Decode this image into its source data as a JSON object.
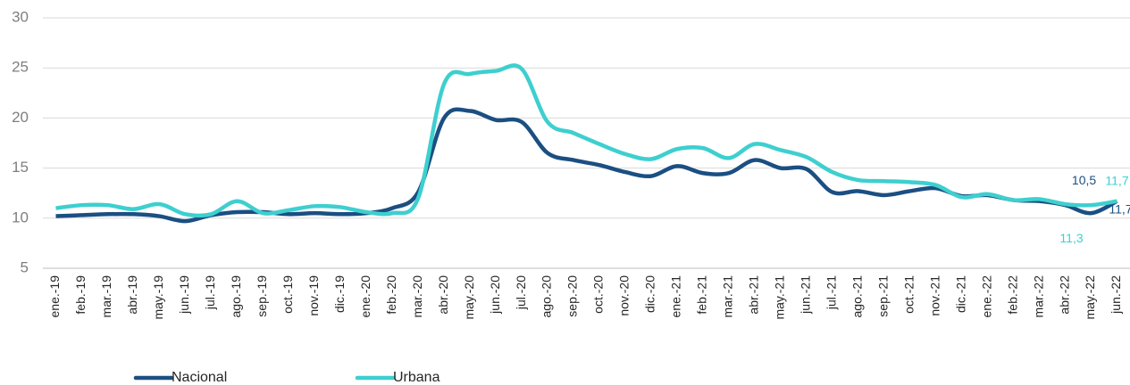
{
  "chart_data": {
    "type": "line",
    "categories": [
      "ene.-19",
      "feb.-19",
      "mar.-19",
      "abr.-19",
      "may.-19",
      "jun.-19",
      "jul.-19",
      "ago.-19",
      "sep.-19",
      "oct.-19",
      "nov.-19",
      "dic.-19",
      "ene.-20",
      "feb.-20",
      "mar.-20",
      "abr.-20",
      "may.-20",
      "jun.-20",
      "jul.-20",
      "ago.-20",
      "sep.-20",
      "oct.-20",
      "nov.-20",
      "dic.-20",
      "ene.-21",
      "feb.-21",
      "mar.-21",
      "abr.-21",
      "may.-21",
      "jun.-21",
      "jul.-21",
      "ago.-21",
      "sep.-21",
      "oct.-21",
      "nov.-21",
      "dic.-21",
      "ene.-22",
      "feb.-22",
      "mar.-22",
      "abr.-22",
      "may.-22",
      "jun.-22"
    ],
    "series": [
      {
        "name": "Nacional",
        "color": "#1b4f82",
        "values": [
          10.2,
          10.3,
          10.4,
          10.4,
          10.2,
          9.7,
          10.3,
          10.6,
          10.6,
          10.4,
          10.5,
          10.4,
          10.5,
          11.0,
          12.6,
          20.0,
          20.7,
          19.8,
          19.6,
          16.5,
          15.8,
          15.3,
          14.6,
          14.2,
          15.2,
          14.5,
          14.5,
          15.8,
          15.0,
          14.9,
          12.6,
          12.7,
          12.3,
          12.7,
          13.0,
          12.2,
          12.3,
          11.8,
          11.7,
          11.3,
          10.5,
          11.7
        ],
        "value_labels": [
          null,
          null,
          null,
          null,
          null,
          null,
          null,
          null,
          null,
          null,
          null,
          null,
          null,
          null,
          null,
          null,
          null,
          null,
          null,
          null,
          null,
          null,
          null,
          null,
          null,
          null,
          null,
          null,
          null,
          null,
          null,
          null,
          null,
          null,
          null,
          null,
          null,
          null,
          null,
          null,
          "10,5",
          "11,7"
        ]
      },
      {
        "name": "Urbana",
        "color": "#3ecfcf",
        "values": [
          11.0,
          11.3,
          11.3,
          10.9,
          11.4,
          10.4,
          10.4,
          11.7,
          10.5,
          10.8,
          11.2,
          11.1,
          10.6,
          10.5,
          12.0,
          23.4,
          24.4,
          24.7,
          24.9,
          19.6,
          18.5,
          17.4,
          16.4,
          15.9,
          16.9,
          17.0,
          16.0,
          17.4,
          16.8,
          16.1,
          14.6,
          13.8,
          13.7,
          13.6,
          13.3,
          12.1,
          12.4,
          11.8,
          11.9,
          11.4,
          11.3,
          11.7
        ],
        "value_labels": [
          null,
          null,
          null,
          null,
          null,
          null,
          null,
          null,
          null,
          null,
          null,
          null,
          null,
          null,
          null,
          null,
          null,
          null,
          null,
          null,
          null,
          null,
          null,
          null,
          null,
          null,
          null,
          null,
          null,
          null,
          null,
          null,
          null,
          null,
          null,
          null,
          null,
          null,
          null,
          null,
          "11,3",
          "11,7"
        ]
      }
    ],
    "ylim": [
      5,
      30
    ],
    "yticks": [
      5,
      10,
      15,
      20,
      25,
      30
    ],
    "grid": true,
    "legend": "bottom"
  }
}
